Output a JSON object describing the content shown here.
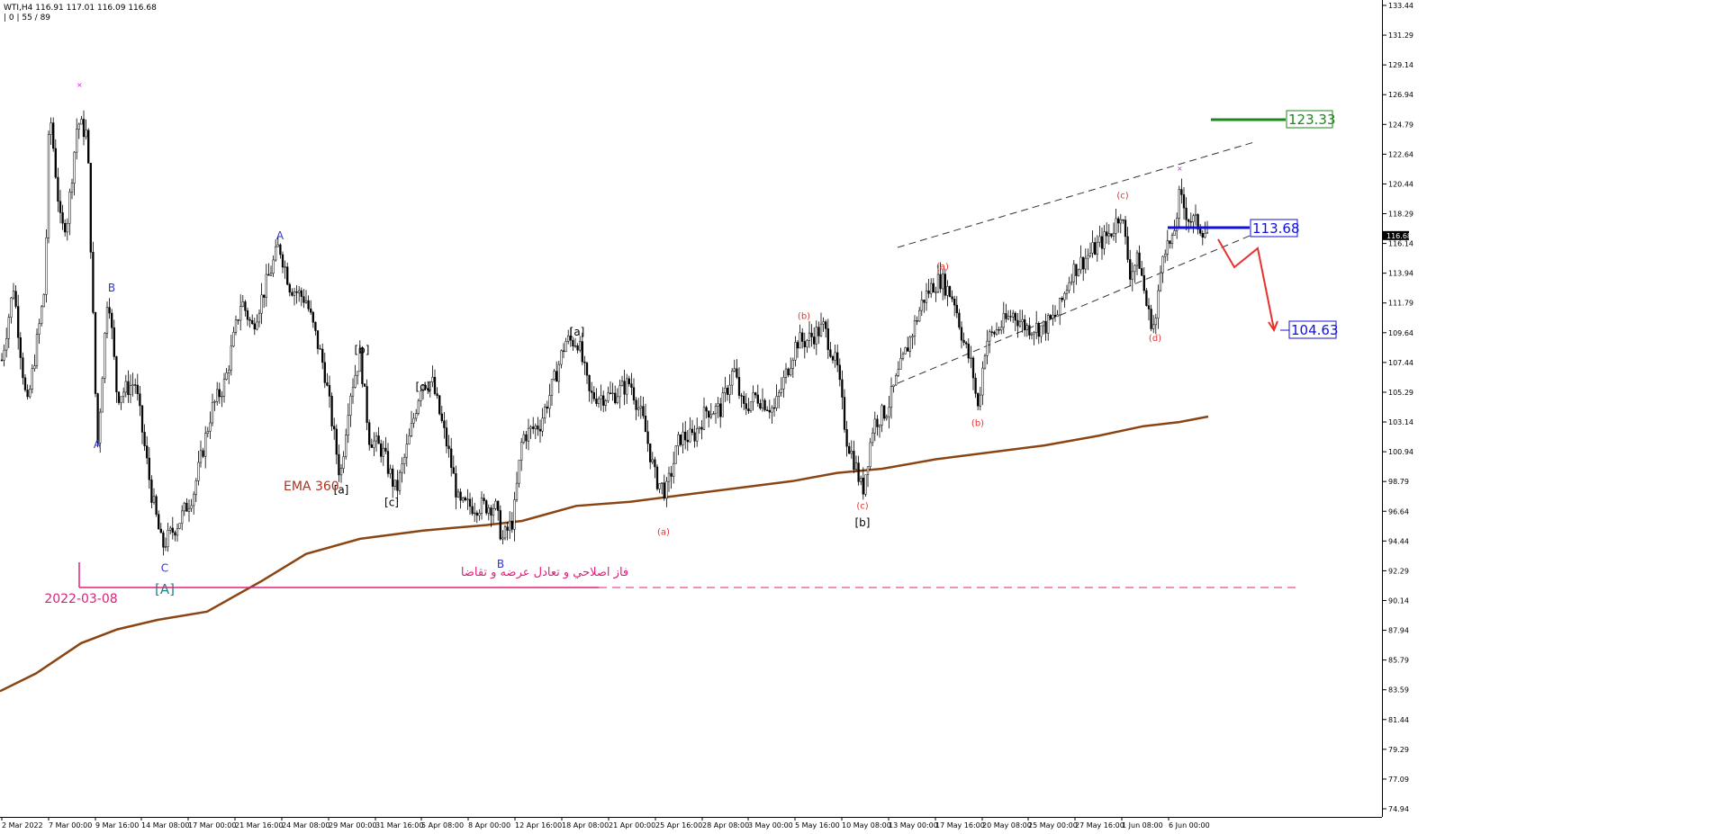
{
  "header": {
    "symbol_line": "WTI,H4  116.91 117.01 116.09 116.68",
    "indicator_line": "| 0 | 55 / 89"
  },
  "chart_data": {
    "type": "candlestick",
    "symbol": "WTI",
    "timeframe": "H4",
    "last_price": "116.68",
    "ohlc": {
      "open": 116.91,
      "high": 117.01,
      "low": 116.09,
      "close": 116.68
    },
    "y_ticks": [
      "133.44",
      "131.29",
      "129.14",
      "126.94",
      "124.79",
      "122.64",
      "120.44",
      "118.29",
      "116.14",
      "113.94",
      "111.79",
      "109.64",
      "107.44",
      "105.29",
      "103.14",
      "100.94",
      "98.79",
      "96.64",
      "94.44",
      "92.29",
      "90.14",
      "87.94",
      "85.79",
      "83.59",
      "81.44",
      "79.29",
      "77.09",
      "74.94"
    ],
    "y_range": [
      74.94,
      133.44
    ],
    "x_ticks": [
      "2 Mar 2022",
      "7 Mar 00:00",
      "9 Mar 16:00",
      "14 Mar 08:00",
      "17 Mar 00:00",
      "21 Mar 16:00",
      "24 Mar 08:00",
      "29 Mar 00:00",
      "31 Mar 16:00",
      "5 Apr 08:00",
      "8 Apr 00:00",
      "12 Apr 16:00",
      "18 Apr 08:00",
      "21 Apr 00:00",
      "25 Apr 16:00",
      "28 Apr 08:00",
      "3 May 00:00",
      "5 May 16:00",
      "10 May 08:00",
      "13 May 00:00",
      "17 May 16:00",
      "20 May 08:00",
      "25 May 00:00",
      "27 May 16:00",
      "1 Jun 08:00",
      "6 Jun 00:00"
    ],
    "path_points": [
      [
        0,
        106.8
      ],
      [
        15,
        113
      ],
      [
        30,
        104
      ],
      [
        50,
        113
      ],
      [
        55,
        126
      ],
      [
        68,
        117
      ],
      [
        75,
        118
      ],
      [
        86,
        125
      ],
      [
        97,
        124
      ],
      [
        108,
        101
      ],
      [
        120,
        113
      ],
      [
        130,
        105
      ],
      [
        150,
        106
      ],
      [
        168,
        98
      ],
      [
        180,
        94
      ],
      [
        200,
        96
      ],
      [
        215,
        98
      ],
      [
        235,
        104
      ],
      [
        250,
        106
      ],
      [
        268,
        112
      ],
      [
        280,
        110
      ],
      [
        295,
        113
      ],
      [
        310,
        116
      ],
      [
        322,
        113
      ],
      [
        340,
        112
      ],
      [
        360,
        107
      ],
      [
        378,
        99
      ],
      [
        388,
        105
      ],
      [
        400,
        108
      ],
      [
        410,
        102
      ],
      [
        425,
        101
      ],
      [
        440,
        98
      ],
      [
        455,
        102
      ],
      [
        468,
        106
      ],
      [
        480,
        106
      ],
      [
        498,
        101
      ],
      [
        510,
        97
      ],
      [
        530,
        97
      ],
      [
        550,
        97
      ],
      [
        558,
        94.5
      ],
      [
        570,
        96
      ],
      [
        580,
        102
      ],
      [
        600,
        103
      ],
      [
        615,
        106
      ],
      [
        628,
        109
      ],
      [
        642,
        109
      ],
      [
        655,
        105
      ],
      [
        665,
        105
      ],
      [
        680,
        105
      ],
      [
        700,
        106
      ],
      [
        715,
        103
      ],
      [
        728,
        99
      ],
      [
        740,
        98
      ],
      [
        755,
        102
      ],
      [
        770,
        102
      ],
      [
        785,
        104
      ],
      [
        800,
        104
      ],
      [
        815,
        107
      ],
      [
        825,
        104
      ],
      [
        840,
        105
      ],
      [
        860,
        104
      ],
      [
        870,
        106
      ],
      [
        885,
        109
      ],
      [
        895,
        109
      ],
      [
        915,
        110
      ],
      [
        930,
        107
      ],
      [
        940,
        102
      ],
      [
        950,
        100
      ],
      [
        958,
        98
      ],
      [
        970,
        103
      ],
      [
        985,
        104
      ],
      [
        1000,
        107
      ],
      [
        1015,
        110
      ],
      [
        1025,
        112
      ],
      [
        1035,
        113
      ],
      [
        1045,
        113.5
      ],
      [
        1060,
        112
      ],
      [
        1070,
        109
      ],
      [
        1080,
        107
      ],
      [
        1086,
        104
      ],
      [
        1095,
        109
      ],
      [
        1110,
        110
      ],
      [
        1125,
        111
      ],
      [
        1140,
        110
      ],
      [
        1160,
        110
      ],
      [
        1175,
        111
      ],
      [
        1190,
        114
      ],
      [
        1205,
        115
      ],
      [
        1220,
        116
      ],
      [
        1235,
        117
      ],
      [
        1245,
        118.5
      ],
      [
        1255,
        114
      ],
      [
        1265,
        115
      ],
      [
        1275,
        111
      ],
      [
        1283,
        110
      ],
      [
        1292,
        116
      ],
      [
        1302,
        116
      ],
      [
        1310,
        119.5
      ],
      [
        1320,
        118
      ],
      [
        1330,
        117.5
      ],
      [
        1342,
        116.8
      ]
    ],
    "ema360_pts": [
      [
        0,
        83.5
      ],
      [
        40,
        84.8
      ],
      [
        90,
        87
      ],
      [
        130,
        88
      ],
      [
        175,
        88.7
      ],
      [
        230,
        89.3
      ],
      [
        290,
        91.5
      ],
      [
        340,
        93.5
      ],
      [
        400,
        94.6
      ],
      [
        470,
        95.2
      ],
      [
        540,
        95.6
      ],
      [
        580,
        95.9
      ],
      [
        640,
        97
      ],
      [
        700,
        97.3
      ],
      [
        760,
        97.8
      ],
      [
        820,
        98.3
      ],
      [
        880,
        98.8
      ],
      [
        930,
        99.4
      ],
      [
        980,
        99.7
      ],
      [
        1040,
        100.4
      ],
      [
        1100,
        100.9
      ],
      [
        1160,
        101.4
      ],
      [
        1220,
        102.1
      ],
      [
        1270,
        102.8
      ],
      [
        1310,
        103.1
      ],
      [
        1342,
        103.5
      ]
    ],
    "series": [
      {
        "name": "EMA 360",
        "color": "#8b4513"
      }
    ],
    "wave_labels": [
      {
        "text": "A",
        "color": "#3333cc",
        "price": 101.2,
        "xpos": 108
      },
      {
        "text": "B",
        "color": "#3333cc",
        "price": 112.6,
        "xpos": 124
      },
      {
        "text": "C",
        "color": "#3333cc",
        "price": 92.2,
        "xpos": 183
      },
      {
        "text": "[A]",
        "color": "#1a8a8a",
        "price": 90.6,
        "xpos": 183
      },
      {
        "text": "A",
        "color": "#3333cc",
        "price": 116.4,
        "xpos": 311
      },
      {
        "text": "[b]",
        "color": "#000000",
        "price": 108.1,
        "xpos": 402
      },
      {
        "text": "[a]",
        "color": "#000000",
        "price": 97.9,
        "xpos": 379
      },
      {
        "text": "[c]",
        "color": "#000000",
        "price": 97.0,
        "xpos": 435
      },
      {
        "text": "[d]",
        "color": "#000000",
        "price": 105.4,
        "xpos": 470
      },
      {
        "text": "B",
        "color": "#3333cc",
        "price": 92.5,
        "xpos": 556
      },
      {
        "text": "[a]",
        "color": "#000000",
        "price": 109.4,
        "xpos": 641
      },
      {
        "text": "(a)",
        "color": "#e8312f",
        "price": 94.9,
        "xpos": 737
      },
      {
        "text": "(b)",
        "color": "#e8312f",
        "price": 110.6,
        "xpos": 893
      },
      {
        "text": "(c)",
        "color": "#e8312f",
        "price": 96.8,
        "xpos": 958
      },
      {
        "text": "[b]",
        "color": "#000000",
        "price": 95.5,
        "xpos": 958
      },
      {
        "text": "(a)",
        "color": "#e8312f",
        "price": 114.2,
        "xpos": 1047
      },
      {
        "text": "(b)",
        "color": "#e8312f",
        "price": 102.8,
        "xpos": 1086
      },
      {
        "text": "(c)",
        "color": "#e8312f",
        "price": 119.4,
        "xpos": 1247
      },
      {
        "text": "(d)",
        "color": "#e8312f",
        "price": 109.0,
        "xpos": 1283
      }
    ],
    "levels": [
      {
        "value": "123.33",
        "color": "#1a8a1a"
      },
      {
        "value": "113.68",
        "color": "#1010dd"
      },
      {
        "value": "104.63",
        "color": "#1010dd"
      }
    ],
    "annotations": {
      "ema_label": "EMA 360",
      "date_label": "2022-03-08",
      "persian_text": "فاز اصلاحي و تعادل عرضه و تقاضا"
    }
  }
}
